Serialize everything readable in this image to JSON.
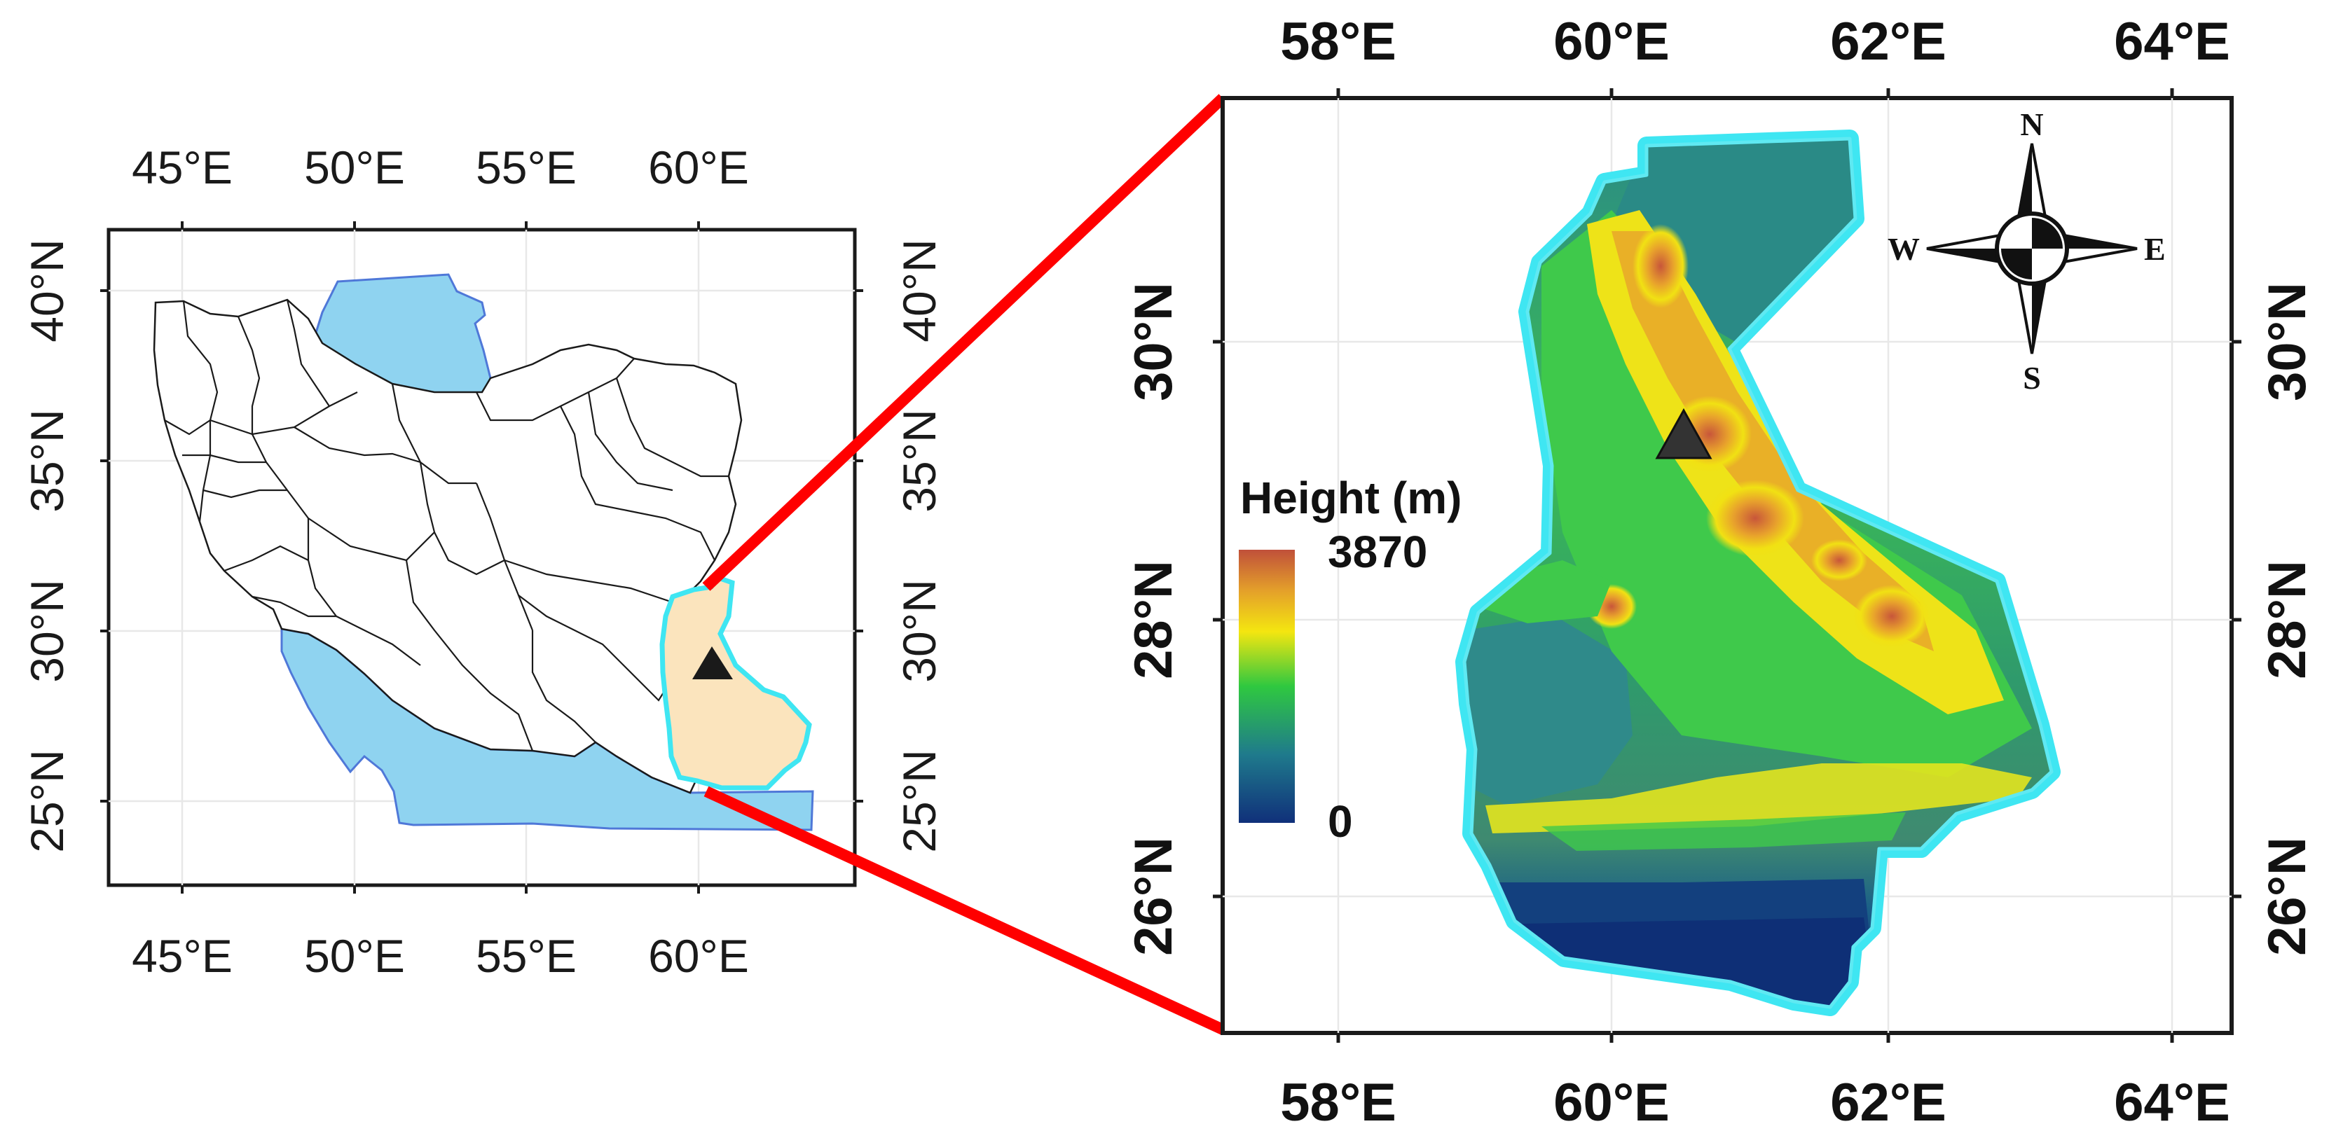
{
  "left_map": {
    "x_tick_labels": [
      "45°E",
      "50°E",
      "55°E",
      "60°E"
    ],
    "y_tick_labels": [
      "25°N",
      "30°N",
      "35°N",
      "40°N"
    ]
  },
  "right_map": {
    "x_tick_labels": [
      "58°E",
      "60°E",
      "62°E",
      "64°E"
    ],
    "y_tick_labels": [
      "26°N",
      "28°N",
      "30°N"
    ]
  },
  "legend": {
    "title": "Height (m)",
    "max_label": "3870",
    "min_label": "0"
  },
  "compass": {
    "north": "N",
    "south": "S",
    "east": "E",
    "west": "W"
  },
  "colors": {
    "sea": "#8fd3f0",
    "study_area_fill": "#fbe4bd",
    "study_area_outline": "#3fe6f2",
    "zoom_lines": "#ff0000",
    "marker": "#1a1a1a",
    "dem_low": "#10307a",
    "dem_mid": "#2fc840",
    "dem_high": "#c0503a"
  }
}
